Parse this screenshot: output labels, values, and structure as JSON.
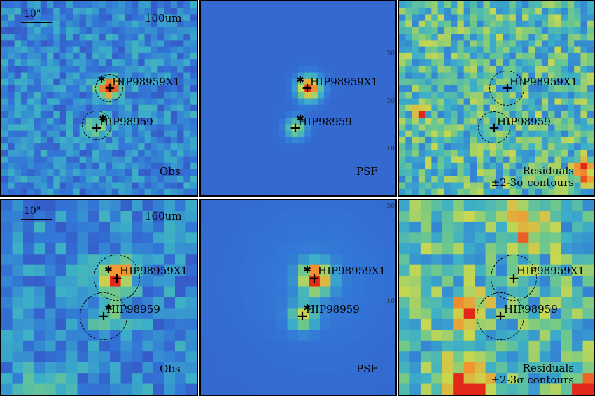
{
  "figure": {
    "rows": [
      {
        "band": "100um",
        "scale_label": "10\"",
        "panels": [
          {
            "kind": "obs",
            "label": "Obs"
          },
          {
            "kind": "psf",
            "label": "PSF"
          },
          {
            "kind": "residual",
            "label_line1": "Residuals",
            "label_line2": "±2-3σ contours"
          }
        ],
        "psf_ticks": [
          "30",
          "20",
          "10"
        ]
      },
      {
        "band": "160um",
        "scale_label": "10\"",
        "panels": [
          {
            "kind": "obs",
            "label": "Obs"
          },
          {
            "kind": "psf",
            "label": "PSF"
          },
          {
            "kind": "residual",
            "label_line1": "Residuals",
            "label_line2": "±2-3σ contours"
          }
        ],
        "psf_ticks": [
          "20",
          "10"
        ]
      }
    ],
    "sources": {
      "primary": "HIP98959X1",
      "secondary": "HIP98959"
    },
    "colors": {
      "background_map": "#2f6fd0",
      "psf_background": "#3b6cc4",
      "peak": "#e23a1c",
      "frame": "#000000"
    }
  }
}
